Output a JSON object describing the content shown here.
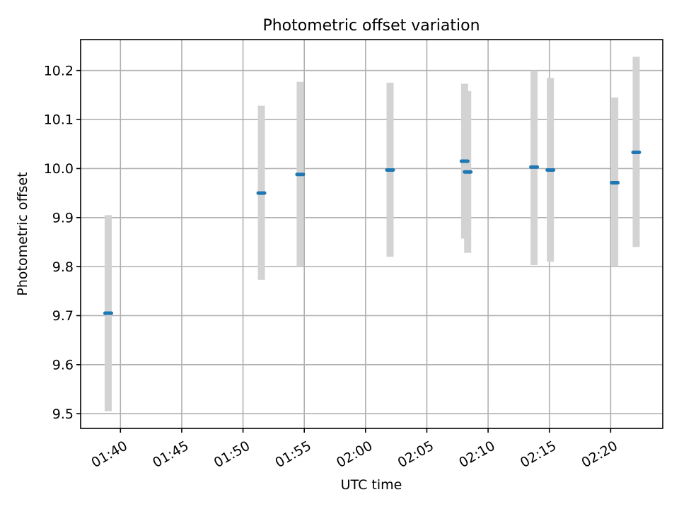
{
  "chart_data": {
    "type": "scatter",
    "title": "Photometric offset variation",
    "xlabel": "UTC time",
    "ylabel": "Photometric offset",
    "xlim": [
      "01:36:45",
      "02:24:15"
    ],
    "ylim": [
      9.47,
      10.263
    ],
    "grid": true,
    "x_ticks": [
      "01:40",
      "01:45",
      "01:50",
      "01:55",
      "02:00",
      "02:05",
      "02:10",
      "02:15",
      "02:20"
    ],
    "y_ticks": [
      "9.5",
      "9.6",
      "9.7",
      "9.8",
      "9.9",
      "10.0",
      "10.1",
      "10.2"
    ],
    "colors": {
      "points": "#1f77b4",
      "error_bars": "#d3d3d3"
    },
    "points": [
      {
        "time": "01:39:00",
        "y": 9.705,
        "low": 9.505,
        "high": 9.905
      },
      {
        "time": "01:51:30",
        "y": 9.95,
        "low": 9.773,
        "high": 10.128
      },
      {
        "time": "01:54:40",
        "y": 9.988,
        "low": 9.8,
        "high": 10.177
      },
      {
        "time": "02:02:00",
        "y": 9.997,
        "low": 9.82,
        "high": 10.175
      },
      {
        "time": "02:08:05",
        "y": 10.015,
        "low": 9.857,
        "high": 10.173
      },
      {
        "time": "02:08:20",
        "y": 9.993,
        "low": 9.828,
        "high": 10.158
      },
      {
        "time": "02:13:45",
        "y": 10.003,
        "low": 9.803,
        "high": 10.2
      },
      {
        "time": "02:15:05",
        "y": 9.997,
        "low": 9.81,
        "high": 10.185
      },
      {
        "time": "02:20:20",
        "y": 9.971,
        "low": 9.8,
        "high": 10.145
      },
      {
        "time": "02:22:05",
        "y": 10.033,
        "low": 9.84,
        "high": 10.228
      }
    ]
  }
}
